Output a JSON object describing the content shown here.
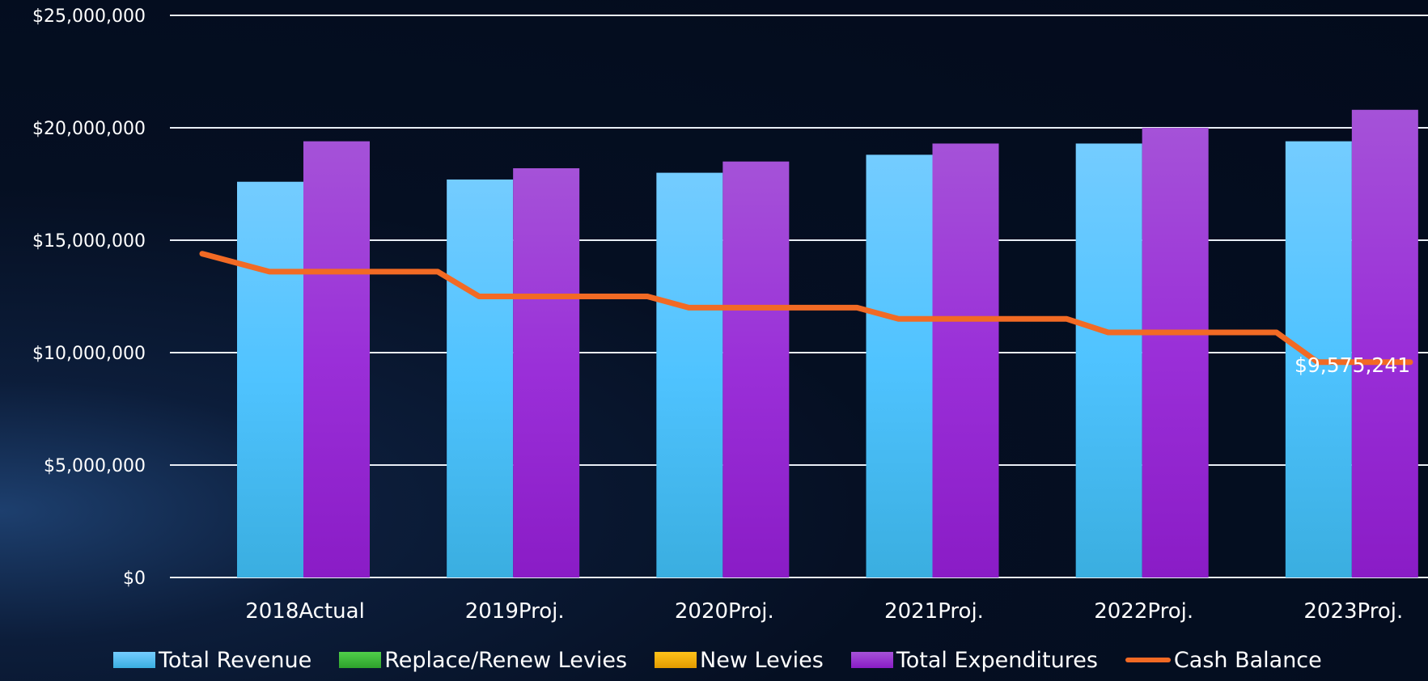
{
  "chart_data": {
    "type": "bar",
    "categories": [
      "2018Actual",
      "2019Proj.",
      "2020Proj.",
      "2021Proj.",
      "2022Proj.",
      "2023Proj."
    ],
    "ylim": [
      0,
      25000000
    ],
    "yticks": [
      "$0",
      "$5,000,000",
      "$10,000,000",
      "$15,000,000",
      "$20,000,000",
      "$25,000,000"
    ],
    "grid": true,
    "legend_position": "bottom",
    "series": [
      {
        "name": "Total Revenue",
        "type": "bar",
        "color": "#5cc8f7",
        "values": [
          17600000,
          17700000,
          18000000,
          18800000,
          19300000,
          19400000
        ]
      },
      {
        "name": "Replace/Renew Levies",
        "type": "bar",
        "color": "#3db83a",
        "values": [
          0,
          0,
          0,
          0,
          0,
          0
        ]
      },
      {
        "name": "New Levies",
        "type": "bar",
        "color": "#f5b000",
        "values": [
          0,
          0,
          0,
          0,
          0,
          0
        ]
      },
      {
        "name": "Total Expenditures",
        "type": "bar",
        "color": "#a23fd6",
        "values": [
          19400000,
          18200000,
          18500000,
          19300000,
          20000000,
          20800000
        ]
      },
      {
        "name": "Cash Balance",
        "type": "line",
        "color": "#f26a24",
        "start": 14400000,
        "values": [
          13600000,
          12500000,
          12000000,
          11500000,
          10900000,
          9575241
        ]
      }
    ],
    "annotations": [
      {
        "text": "$9,575,241"
      }
    ]
  }
}
